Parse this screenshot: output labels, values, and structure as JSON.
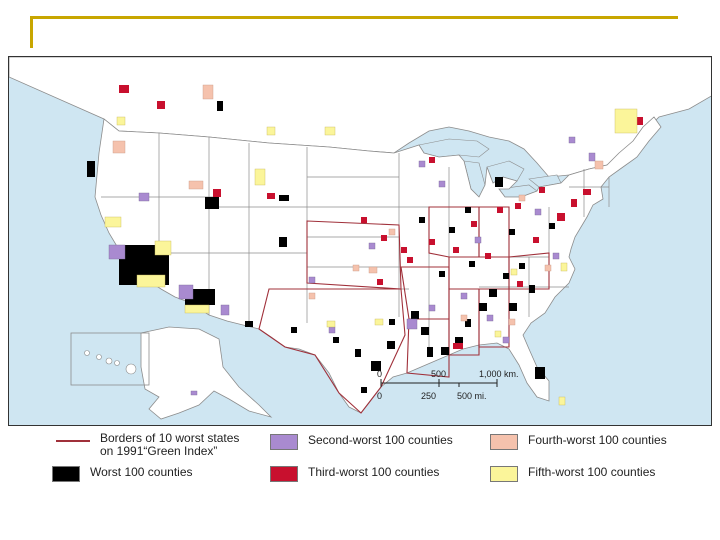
{
  "legend": {
    "borders": "Borders of 10 worst states\non 1991“Green Index”",
    "worst": "Worst 100 counties",
    "second": "Second-worst 100 counties",
    "third": "Third-worst 100 counties",
    "fourth": "Fourth-worst 100 counties",
    "fifth": "Fifth-worst 100 counties"
  },
  "scale": {
    "km_ticks": [
      "0",
      "500",
      "1,000 km."
    ],
    "mi_ticks": [
      "0",
      "250",
      "500 mi."
    ]
  },
  "colors": {
    "ocean": "#cfe6f2",
    "land": "#ffffff",
    "state_border": "#8c8c8c",
    "worst_state_border": "#a0303a",
    "worst": "#000000",
    "second": "#a98ad0",
    "third": "#c8102e",
    "fourth": "#f5c2ad",
    "fifth": "#fbf59a"
  }
}
